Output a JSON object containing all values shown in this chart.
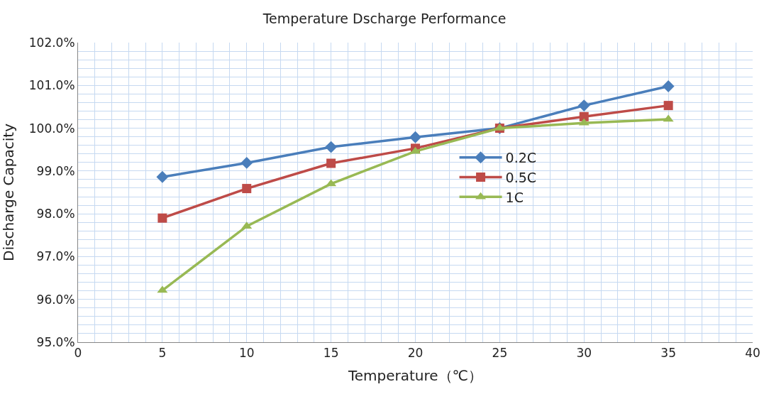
{
  "chart_data": {
    "type": "line",
    "title": "Temperature Dscharge Performance",
    "xlabel": "Temperature（℃）",
    "ylabel": "Discharge Capacity",
    "x": [
      5,
      10,
      15,
      20,
      25,
      30,
      35
    ],
    "series": [
      {
        "name": "0.2C",
        "color": "#4a7ebb",
        "marker": "diamond",
        "values": [
          98.86,
          99.19,
          99.56,
          99.79,
          100.0,
          100.53,
          100.98
        ]
      },
      {
        "name": "0.5C",
        "color": "#be4b48",
        "marker": "square",
        "values": [
          97.9,
          98.59,
          99.18,
          99.53,
          100.0,
          100.27,
          100.53
        ]
      },
      {
        "name": "1C",
        "color": "#98b954",
        "marker": "triangle",
        "values": [
          96.21,
          97.71,
          98.7,
          99.46,
          100.0,
          100.12,
          100.21
        ]
      }
    ],
    "xlim": [
      0,
      40
    ],
    "xticks": [
      0,
      {
        "value": 1,
        "label": null
      },
      {
        "value": 2,
        "label": null
      },
      {
        "value": 3,
        "label": null
      },
      {
        "value": 4,
        "label": null
      },
      5,
      {
        "value": 6,
        "label": null
      },
      {
        "value": 7,
        "label": null
      },
      {
        "value": 8,
        "label": null
      },
      {
        "value": 9,
        "label": null
      },
      10,
      {
        "value": 11,
        "label": null
      },
      {
        "value": 12,
        "label": null
      },
      {
        "value": 13,
        "label": null
      },
      {
        "value": 14,
        "label": null
      },
      15,
      {
        "value": 16,
        "label": null
      },
      {
        "value": 17,
        "label": null
      },
      {
        "value": 18,
        "label": null
      },
      {
        "value": 19,
        "label": null
      },
      20,
      {
        "value": 21,
        "label": null
      },
      {
        "value": 22,
        "label": null
      },
      {
        "value": 23,
        "label": null
      },
      {
        "value": 24,
        "label": null
      },
      25,
      {
        "value": 26,
        "label": null
      },
      {
        "value": 27,
        "label": null
      },
      {
        "value": 28,
        "label": null
      },
      {
        "value": 29,
        "label": null
      },
      30,
      {
        "value": 31,
        "label": null
      },
      {
        "value": 32,
        "label": null
      },
      {
        "value": 33,
        "label": null
      },
      {
        "value": 34,
        "label": null
      },
      35,
      {
        "value": 36,
        "label": null
      },
      {
        "value": 37,
        "label": null
      },
      {
        "value": 38,
        "label": null
      },
      {
        "value": 39,
        "label": null
      },
      40
    ],
    "ylim": [
      95,
      102
    ],
    "yticks": [
      {
        "value": 95,
        "label": "95.0%"
      },
      {
        "value": 95.2,
        "label": null
      },
      {
        "value": 95.4,
        "label": null
      },
      {
        "value": 95.6,
        "label": null
      },
      {
        "value": 95.8,
        "label": null
      },
      {
        "value": 96,
        "label": "96.0%"
      },
      {
        "value": 96.2,
        "label": null
      },
      {
        "value": 96.4,
        "label": null
      },
      {
        "value": 96.6,
        "label": null
      },
      {
        "value": 96.8,
        "label": null
      },
      {
        "value": 97,
        "label": "97.0%"
      },
      {
        "value": 97.2,
        "label": null
      },
      {
        "value": 97.4,
        "label": null
      },
      {
        "value": 97.6,
        "label": null
      },
      {
        "value": 97.8,
        "label": null
      },
      {
        "value": 98,
        "label": "98.0%"
      },
      {
        "value": 98.2,
        "label": null
      },
      {
        "value": 98.4,
        "label": null
      },
      {
        "value": 98.6,
        "label": null
      },
      {
        "value": 98.8,
        "label": null
      },
      {
        "value": 99,
        "label": "99.0%"
      },
      {
        "value": 99.2,
        "label": null
      },
      {
        "value": 99.4,
        "label": null
      },
      {
        "value": 99.6,
        "label": null
      },
      {
        "value": 99.8,
        "label": null
      },
      {
        "value": 100,
        "label": "100.0%"
      },
      {
        "value": 100.2,
        "label": null
      },
      {
        "value": 100.4,
        "label": null
      },
      {
        "value": 100.6,
        "label": null
      },
      {
        "value": 100.8,
        "label": null
      },
      {
        "value": 101,
        "label": "101.0%"
      },
      {
        "value": 101.2,
        "label": null
      },
      {
        "value": 101.4,
        "label": null
      },
      {
        "value": 101.6,
        "label": null
      },
      {
        "value": 101.8,
        "label": null
      },
      {
        "value": 102,
        "label": "102.0%"
      }
    ],
    "grid": true,
    "legend": "center",
    "line_style": "solid"
  }
}
